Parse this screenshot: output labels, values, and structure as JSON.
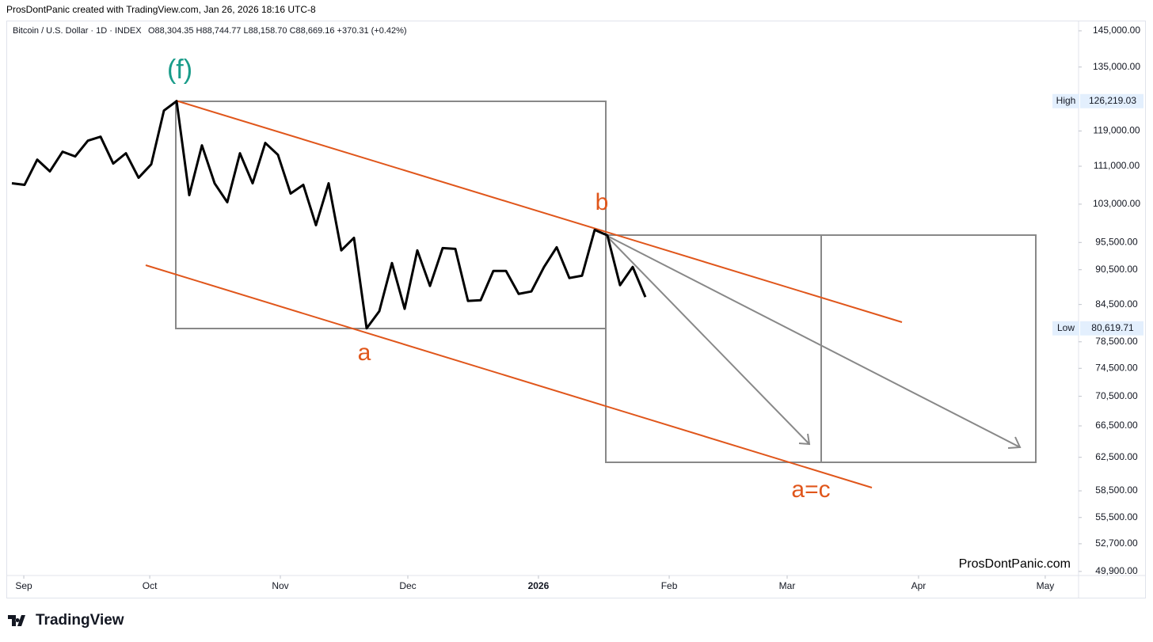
{
  "header": "ProsDontPanic created with TradingView.com, Jan 26, 2026 18:16 UTC-8",
  "footer": {
    "logo": "TradingView"
  },
  "chart_data": {
    "type": "line",
    "legend_text": "Bitcoin / U.S. Dollar · 1D · INDEX",
    "ohlc_text": "O88,304.35 H88,744.77 L88,158.70 C88,669.16 +370.31 (+0.42%)",
    "log_scale": true,
    "grid": false,
    "series": [
      {
        "name": "Bitcoin / U.S. Dollar",
        "color": "#000000",
        "values": [
          107330,
          107000,
          112460,
          109880,
          114230,
          113170,
          116750,
          117660,
          111600,
          113880,
          108500,
          111420,
          123890,
          126219,
          104850,
          115670,
          107330,
          103390,
          113880,
          107330,
          116220,
          113530,
          105180,
          107000,
          98820,
          107330,
          94020,
          96380,
          80620,
          83390,
          91700,
          83780,
          94020,
          87650,
          94450,
          94300,
          85090,
          85210,
          90280,
          90280,
          86290,
          86700,
          90990,
          94600,
          89030,
          89440,
          97900,
          96850,
          87780,
          90990,
          85750
        ]
      }
    ],
    "xlim": [
      -0.3125,
      84.19
    ],
    "xticks": [
      {
        "value": 0.94,
        "label": "Sep"
      },
      {
        "value": 10.88,
        "label": "Oct"
      },
      {
        "value": 21.19,
        "label": "Nov"
      },
      {
        "value": 31.25,
        "label": "Dec"
      },
      {
        "value": 41.56,
        "label": "2026"
      },
      {
        "value": 51.88,
        "label": "Feb"
      },
      {
        "value": 61.19,
        "label": "Mar"
      },
      {
        "value": 71.56,
        "label": "Apr"
      },
      {
        "value": 81.56,
        "label": "May"
      }
    ],
    "ylim": [
      49500,
      147500
    ],
    "yticks": [
      {
        "value": 145000,
        "label": "145,000.00"
      },
      {
        "value": 135000,
        "label": "135,000.00"
      },
      {
        "value": 119000,
        "label": "119,000.00"
      },
      {
        "value": 111000,
        "label": "111,000.00"
      },
      {
        "value": 103000,
        "label": "103,000.00"
      },
      {
        "value": 95500,
        "label": "95,500.00"
      },
      {
        "value": 90500,
        "label": "90,500.00"
      },
      {
        "value": 84500,
        "label": "84,500.00"
      },
      {
        "value": 78500,
        "label": "78,500.00"
      },
      {
        "value": 74500,
        "label": "74,500.00"
      },
      {
        "value": 70500,
        "label": "70,500.00"
      },
      {
        "value": 66500,
        "label": "66,500.00"
      },
      {
        "value": 62500,
        "label": "62,500.00"
      },
      {
        "value": 58500,
        "label": "58,500.00"
      },
      {
        "value": 55500,
        "label": "55,500.00"
      },
      {
        "value": 52700,
        "label": "52,700.00"
      },
      {
        "value": 49900,
        "label": "49,900.00"
      }
    ],
    "price_labels": [
      {
        "name": "High",
        "value": 126219.03,
        "label": "126,219.03"
      },
      {
        "name": "Low",
        "value": 80619.71,
        "label": "80,619.71"
      }
    ],
    "annotations": [
      "(f)",
      "b",
      "a",
      "a=c"
    ],
    "watermark": "ProsDontPanic.com"
  }
}
